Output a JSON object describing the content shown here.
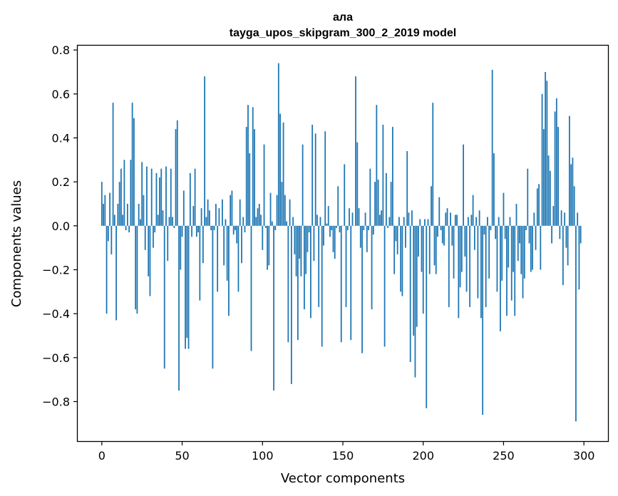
{
  "chart_data": {
    "type": "bar",
    "title": "ала",
    "subtitle": "tayga_upos_skipgram_300_2_2019 model",
    "xlabel": "Vector components",
    "ylabel": "Components values",
    "xlim": [
      -15,
      315
    ],
    "ylim": [
      -0.98,
      0.82
    ],
    "xticks": [
      0,
      50,
      100,
      150,
      200,
      250,
      300
    ],
    "xtick_labels": [
      "0",
      "50",
      "100",
      "150",
      "200",
      "250",
      "300"
    ],
    "yticks": [
      -0.8,
      -0.6,
      -0.4,
      -0.2,
      0.0,
      0.2,
      0.4,
      0.6,
      0.8
    ],
    "ytick_labels": [
      "−0.8",
      "−0.6",
      "−0.4",
      "−0.2",
      "0.0",
      "0.2",
      "0.4",
      "0.6",
      "0.8"
    ],
    "bar_color": "#1f77b4",
    "grid": false,
    "values": [
      0.2,
      0.1,
      0.14,
      -0.4,
      -0.07,
      0.15,
      -0.13,
      0.56,
      0.05,
      -0.43,
      0.1,
      0.2,
      0.26,
      0.05,
      0.3,
      -0.02,
      0.1,
      -0.03,
      0.3,
      0.56,
      0.49,
      -0.38,
      -0.4,
      0.1,
      0.03,
      0.29,
      0.14,
      -0.11,
      0.27,
      -0.23,
      -0.32,
      0.26,
      -0.1,
      -0.03,
      0.24,
      0.05,
      0.22,
      0.26,
      0.07,
      -0.65,
      0.27,
      -0.16,
      0.04,
      0.26,
      0.04,
      -0.01,
      0.44,
      0.48,
      -0.75,
      -0.2,
      -0.05,
      0.16,
      -0.56,
      -0.51,
      -0.56,
      0.24,
      -0.05,
      0.09,
      0.26,
      -0.05,
      -0.03,
      -0.34,
      0.08,
      -0.17,
      0.68,
      0.04,
      0.12,
      0.07,
      -0.02,
      -0.65,
      -0.02,
      0.1,
      -0.3,
      0.08,
      0.0,
      0.12,
      -0.18,
      0.03,
      -0.25,
      -0.41,
      0.14,
      0.16,
      -0.04,
      -0.02,
      -0.08,
      -0.3,
      0.12,
      -0.17,
      0.04,
      -0.03,
      0.45,
      0.55,
      0.33,
      -0.57,
      0.54,
      0.44,
      0.04,
      0.08,
      0.1,
      0.05,
      -0.11,
      0.37,
      -0.01,
      -0.2,
      -0.18,
      0.15,
      0.02,
      -0.75,
      -0.02,
      0.14,
      0.74,
      0.51,
      0.2,
      0.47,
      0.14,
      0.02,
      -0.53,
      0.12,
      -0.72,
      0.04,
      -0.13,
      -0.23,
      -0.52,
      -0.15,
      -0.23,
      0.37,
      -0.38,
      -0.22,
      -0.12,
      -0.03,
      -0.42,
      0.46,
      -0.16,
      0.42,
      0.05,
      -0.37,
      0.04,
      -0.55,
      -0.09,
      0.43,
      0.01,
      0.09,
      -0.05,
      -0.02,
      -0.12,
      -0.15,
      -0.01,
      0.18,
      -0.03,
      -0.53,
      0.0,
      0.28,
      -0.37,
      -0.02,
      0.08,
      -0.52,
      0.06,
      0.0,
      0.68,
      0.38,
      0.08,
      -0.1,
      -0.58,
      -0.02,
      0.06,
      -0.12,
      -0.02,
      0.26,
      -0.38,
      -0.04,
      0.2,
      0.55,
      0.21,
      0.05,
      0.07,
      0.46,
      -0.55,
      0.24,
      -0.01,
      0.04,
      0.2,
      0.45,
      -0.22,
      -0.07,
      -0.13,
      0.04,
      -0.3,
      -0.32,
      0.04,
      -0.1,
      0.34,
      0.06,
      -0.62,
      0.07,
      -0.5,
      -0.69,
      -0.46,
      -0.14,
      0.03,
      -0.21,
      -0.4,
      0.03,
      -0.83,
      0.03,
      -0.22,
      0.18,
      0.56,
      -0.18,
      -0.22,
      -0.05,
      0.13,
      -0.02,
      -0.08,
      -0.09,
      0.06,
      0.08,
      -0.37,
      0.06,
      -0.09,
      -0.24,
      0.05,
      0.05,
      -0.42,
      -0.28,
      -0.21,
      0.37,
      -0.14,
      -0.3,
      0.04,
      -0.37,
      0.05,
      0.14,
      -0.11,
      0.04,
      -0.33,
      0.07,
      -0.42,
      -0.86,
      -0.04,
      -0.37,
      0.04,
      -0.24,
      -0.02,
      0.71,
      0.33,
      -0.06,
      -0.3,
      0.04,
      -0.48,
      -0.25,
      0.15,
      -0.06,
      -0.41,
      -0.19,
      0.04,
      -0.34,
      -0.21,
      -0.41,
      0.1,
      -0.16,
      -0.08,
      -0.22,
      -0.33,
      -0.24,
      -0.02,
      0.26,
      -0.08,
      -0.21,
      -0.2,
      0.06,
      -0.11,
      0.17,
      0.19,
      -0.2,
      0.6,
      0.44,
      0.7,
      0.66,
      0.32,
      0.25,
      -0.08,
      0.09,
      0.52,
      0.58,
      0.45,
      -0.06,
      0.07,
      -0.27,
      0.06,
      -0.1,
      -0.18,
      0.5,
      0.28,
      0.31,
      0.18,
      -0.89,
      0.06,
      -0.29,
      -0.08
    ]
  }
}
